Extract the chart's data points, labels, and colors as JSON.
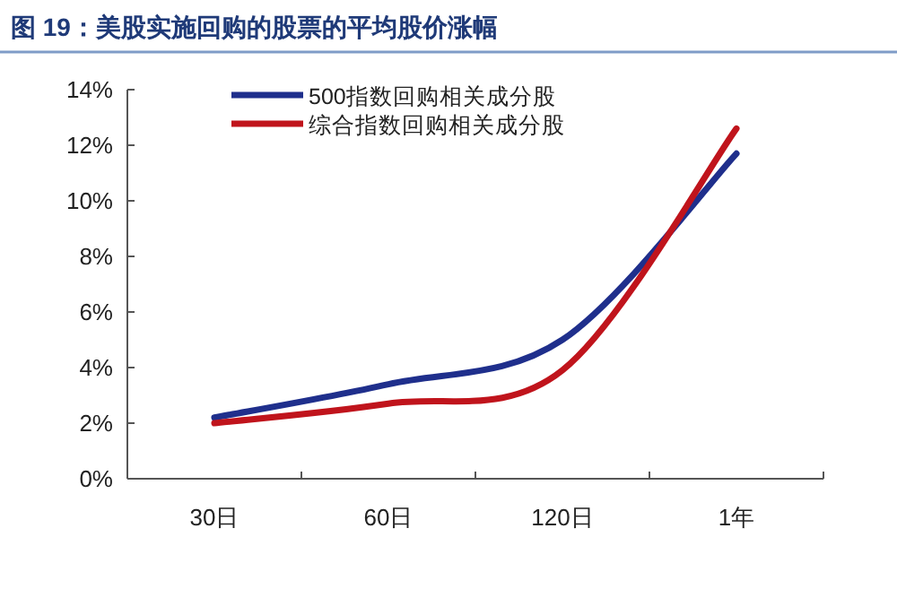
{
  "chart_data": {
    "type": "line",
    "title": "图 19：美股实施回购的股票的平均股价涨幅",
    "categories": [
      "30日",
      "60日",
      "120日",
      "1年"
    ],
    "series": [
      {
        "name": "500指数回购相关成分股",
        "color": "#1f2f8c",
        "values": [
          2.2,
          3.4,
          5.0,
          11.7
        ]
      },
      {
        "name": "综合指数回购相关成分股",
        "color": "#c0141c",
        "values": [
          2.0,
          2.7,
          3.9,
          12.6
        ]
      }
    ],
    "ylim": [
      0,
      14
    ],
    "yticks": [
      {
        "value": 0,
        "label": "0%"
      },
      {
        "value": 2,
        "label": "2%"
      },
      {
        "value": 4,
        "label": "4%"
      },
      {
        "value": 6,
        "label": "6%"
      },
      {
        "value": 8,
        "label": "8%"
      },
      {
        "value": 10,
        "label": "10%"
      },
      {
        "value": 12,
        "label": "12%"
      },
      {
        "value": 14,
        "label": "14%"
      }
    ],
    "grid": false,
    "legend": "top left",
    "marker": "none",
    "line_style": "solid"
  }
}
